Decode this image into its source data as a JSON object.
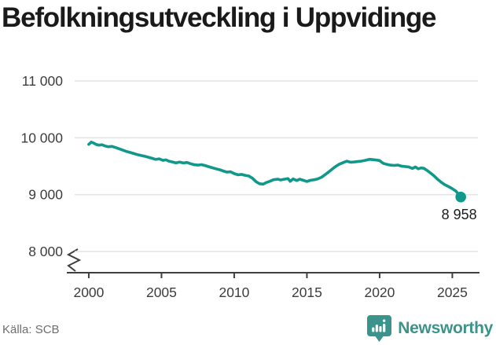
{
  "title": "Befolkningsutveckling i Uppvidinge",
  "chart_data": {
    "type": "line",
    "title": "Befolkningsutveckling i Uppvidinge",
    "xlabel": "",
    "ylabel": "",
    "xlim": [
      1999.03,
      2026.76
    ],
    "ylim": [
      8000,
      11000
    ],
    "grid": "horizontal",
    "legend": "none",
    "axis_break_bottom_left": true,
    "end_label": "8 958",
    "end_value": 8958,
    "line_color": "#10988a",
    "y_ticks": [
      {
        "value": 11000,
        "label": "11 000"
      },
      {
        "value": 10000,
        "label": "10 000"
      },
      {
        "value": 9000,
        "label": "9 000"
      },
      {
        "value": 8000,
        "label": "8 000"
      }
    ],
    "x_ticks": [
      {
        "value": 2000,
        "label": "2000"
      },
      {
        "value": 2005,
        "label": "2005"
      },
      {
        "value": 2010,
        "label": "2010"
      },
      {
        "value": 2015,
        "label": "2015"
      },
      {
        "value": 2020,
        "label": "2020"
      },
      {
        "value": 2025,
        "label": "2025"
      }
    ],
    "series": [
      {
        "name": "Befolkning i Uppvidinge",
        "color": "#10988a",
        "points": [
          [
            2000.0,
            9885
          ],
          [
            2000.17,
            9925
          ],
          [
            2000.33,
            9908
          ],
          [
            2000.5,
            9885
          ],
          [
            2000.7,
            9870
          ],
          [
            2000.9,
            9878
          ],
          [
            2001.1,
            9858
          ],
          [
            2001.35,
            9843
          ],
          [
            2001.6,
            9848
          ],
          [
            2001.85,
            9828
          ],
          [
            2002.1,
            9805
          ],
          [
            2002.35,
            9782
          ],
          [
            2002.6,
            9758
          ],
          [
            2002.85,
            9742
          ],
          [
            2003.1,
            9722
          ],
          [
            2003.35,
            9703
          ],
          [
            2003.6,
            9688
          ],
          [
            2003.85,
            9675
          ],
          [
            2004.1,
            9658
          ],
          [
            2004.35,
            9640
          ],
          [
            2004.6,
            9620
          ],
          [
            2004.85,
            9630
          ],
          [
            2005.1,
            9602
          ],
          [
            2005.3,
            9612
          ],
          [
            2005.5,
            9590
          ],
          [
            2005.75,
            9575
          ],
          [
            2006.0,
            9558
          ],
          [
            2006.25,
            9572
          ],
          [
            2006.5,
            9556
          ],
          [
            2006.75,
            9566
          ],
          [
            2007.0,
            9544
          ],
          [
            2007.25,
            9526
          ],
          [
            2007.5,
            9520
          ],
          [
            2007.75,
            9528
          ],
          [
            2008.0,
            9512
          ],
          [
            2008.25,
            9492
          ],
          [
            2008.5,
            9472
          ],
          [
            2008.75,
            9455
          ],
          [
            2009.0,
            9438
          ],
          [
            2009.25,
            9415
          ],
          [
            2009.5,
            9396
          ],
          [
            2009.75,
            9402
          ],
          [
            2010.0,
            9370
          ],
          [
            2010.25,
            9350
          ],
          [
            2010.5,
            9356
          ],
          [
            2010.75,
            9340
          ],
          [
            2011.0,
            9328
          ],
          [
            2011.25,
            9290
          ],
          [
            2011.5,
            9228
          ],
          [
            2011.75,
            9192
          ],
          [
            2012.0,
            9185
          ],
          [
            2012.2,
            9212
          ],
          [
            2012.45,
            9235
          ],
          [
            2012.7,
            9262
          ],
          [
            2013.0,
            9272
          ],
          [
            2013.2,
            9258
          ],
          [
            2013.45,
            9272
          ],
          [
            2013.7,
            9282
          ],
          [
            2013.85,
            9235
          ],
          [
            2014.05,
            9278
          ],
          [
            2014.3,
            9248
          ],
          [
            2014.5,
            9272
          ],
          [
            2014.75,
            9252
          ],
          [
            2015.0,
            9232
          ],
          [
            2015.25,
            9252
          ],
          [
            2015.5,
            9262
          ],
          [
            2015.75,
            9278
          ],
          [
            2016.0,
            9305
          ],
          [
            2016.3,
            9360
          ],
          [
            2016.6,
            9420
          ],
          [
            2016.9,
            9482
          ],
          [
            2017.2,
            9532
          ],
          [
            2017.5,
            9565
          ],
          [
            2017.75,
            9588
          ],
          [
            2018.0,
            9570
          ],
          [
            2018.25,
            9575
          ],
          [
            2018.5,
            9582
          ],
          [
            2018.75,
            9590
          ],
          [
            2019.0,
            9602
          ],
          [
            2019.3,
            9622
          ],
          [
            2019.55,
            9615
          ],
          [
            2019.8,
            9608
          ],
          [
            2020.0,
            9600
          ],
          [
            2020.25,
            9550
          ],
          [
            2020.5,
            9532
          ],
          [
            2020.75,
            9520
          ],
          [
            2021.0,
            9514
          ],
          [
            2021.25,
            9521
          ],
          [
            2021.5,
            9502
          ],
          [
            2021.75,
            9494
          ],
          [
            2022.0,
            9488
          ],
          [
            2022.25,
            9460
          ],
          [
            2022.45,
            9488
          ],
          [
            2022.65,
            9455
          ],
          [
            2022.85,
            9470
          ],
          [
            2023.05,
            9462
          ],
          [
            2023.25,
            9428
          ],
          [
            2023.5,
            9380
          ],
          [
            2023.75,
            9328
          ],
          [
            2024.0,
            9268
          ],
          [
            2024.25,
            9215
          ],
          [
            2024.5,
            9172
          ],
          [
            2024.75,
            9140
          ],
          [
            2025.0,
            9105
          ],
          [
            2025.25,
            9062
          ],
          [
            2025.58,
            8958
          ]
        ]
      }
    ]
  },
  "footer": {
    "source": "Källa: SCB",
    "brand": "Newsworthy",
    "brand_color": "#3c938c",
    "logo_icon": "bar-chart-speech-bubble-icon"
  }
}
